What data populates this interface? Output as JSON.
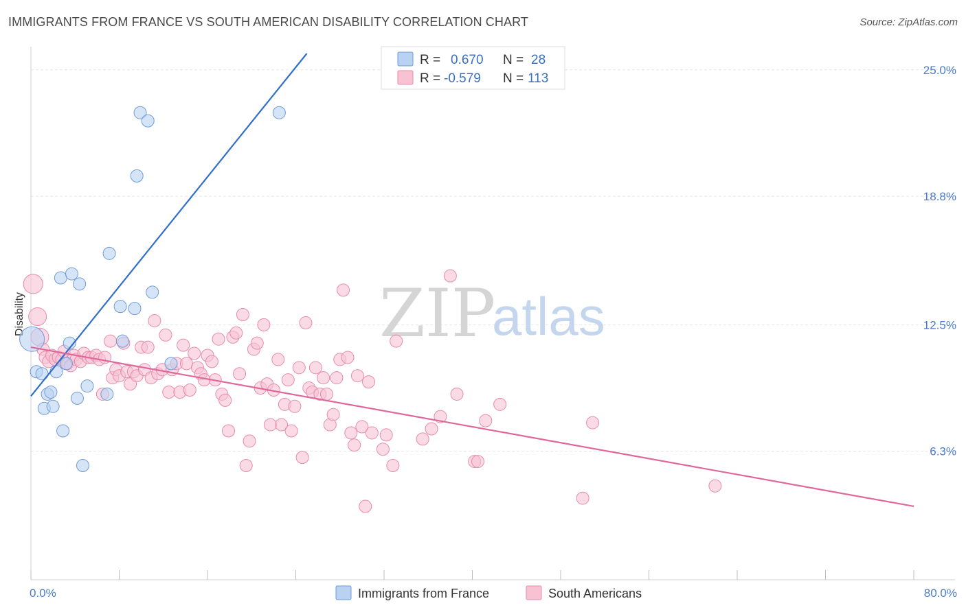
{
  "title": "IMMIGRANTS FROM FRANCE VS SOUTH AMERICAN DISABILITY CORRELATION CHART",
  "source": "Source: ZipAtlas.com",
  "watermark": {
    "zip": "ZIP",
    "atlas": "atlas"
  },
  "colors": {
    "france_fill": "#b9d2f2",
    "france_stroke": "#6e9bd8",
    "france_line": "#2f6ecb",
    "sa_fill": "#f7c3d3",
    "sa_stroke": "#e98aab",
    "sa_line": "#e0679a",
    "grid": "#e5e5e5",
    "tick_label": "#4a7ccc"
  },
  "legend": {
    "france": {
      "r_label": "R =",
      "r_value": "0.670",
      "n_label": "N =",
      "n_value": "28"
    },
    "sa": {
      "r_label": "R =",
      "r_value": "-0.579",
      "n_label": "N =",
      "n_value": "113"
    }
  },
  "bottom_legend": {
    "france": "Immigrants from France",
    "sa": "South Americans"
  },
  "chart_data": {
    "type": "scatter",
    "xlabel": "",
    "ylabel": "Disability",
    "xlim": [
      0,
      80
    ],
    "ylim": [
      0,
      25.8
    ],
    "x_tick_labels": [
      "0.0%",
      "80.0%"
    ],
    "y_ticks": [
      6.3,
      12.5,
      18.8,
      25.0
    ],
    "y_tick_labels": [
      "6.3%",
      "12.5%",
      "18.8%",
      "25.0%"
    ],
    "grid": true,
    "legend_position": "top-center",
    "series": [
      {
        "name": "Immigrants from France",
        "trend": {
          "x": [
            0,
            25.0
          ],
          "y": [
            9.0,
            25.8
          ]
        },
        "points": [
          {
            "x": 0.1,
            "y": 11.8,
            "r": 18
          },
          {
            "x": 0.5,
            "y": 10.2
          },
          {
            "x": 1.0,
            "y": 10.1
          },
          {
            "x": 1.2,
            "y": 8.4
          },
          {
            "x": 1.5,
            "y": 9.1
          },
          {
            "x": 1.8,
            "y": 9.2
          },
          {
            "x": 2.0,
            "y": 8.5
          },
          {
            "x": 2.3,
            "y": 10.2
          },
          {
            "x": 2.7,
            "y": 14.8
          },
          {
            "x": 2.9,
            "y": 7.3
          },
          {
            "x": 3.2,
            "y": 10.6
          },
          {
            "x": 3.5,
            "y": 11.6
          },
          {
            "x": 3.7,
            "y": 15.0
          },
          {
            "x": 4.2,
            "y": 8.9
          },
          {
            "x": 4.4,
            "y": 14.5
          },
          {
            "x": 4.7,
            "y": 5.6
          },
          {
            "x": 5.1,
            "y": 9.5
          },
          {
            "x": 6.9,
            "y": 9.1
          },
          {
            "x": 7.1,
            "y": 16.0
          },
          {
            "x": 8.1,
            "y": 13.4
          },
          {
            "x": 8.3,
            "y": 11.7
          },
          {
            "x": 9.4,
            "y": 13.3
          },
          {
            "x": 9.6,
            "y": 19.8
          },
          {
            "x": 9.9,
            "y": 22.9
          },
          {
            "x": 10.6,
            "y": 22.5
          },
          {
            "x": 11.0,
            "y": 14.1
          },
          {
            "x": 12.7,
            "y": 10.6
          },
          {
            "x": 22.5,
            "y": 22.9
          }
        ]
      },
      {
        "name": "South Americans",
        "trend": {
          "x": [
            0,
            80
          ],
          "y": [
            11.4,
            3.6
          ]
        },
        "points": [
          {
            "x": 0.2,
            "y": 14.5,
            "r": 14
          },
          {
            "x": 0.6,
            "y": 12.9,
            "r": 13
          },
          {
            "x": 0.8,
            "y": 11.9,
            "r": 13
          },
          {
            "x": 1.1,
            "y": 11.3
          },
          {
            "x": 1.3,
            "y": 10.9
          },
          {
            "x": 1.6,
            "y": 10.7
          },
          {
            "x": 1.9,
            "y": 11.0
          },
          {
            "x": 2.2,
            "y": 10.8
          },
          {
            "x": 2.5,
            "y": 10.9
          },
          {
            "x": 2.8,
            "y": 10.8
          },
          {
            "x": 3.0,
            "y": 11.2
          },
          {
            "x": 3.3,
            "y": 10.6
          },
          {
            "x": 3.6,
            "y": 10.5
          },
          {
            "x": 3.9,
            "y": 11.0
          },
          {
            "x": 4.1,
            "y": 10.8
          },
          {
            "x": 4.5,
            "y": 10.7
          },
          {
            "x": 4.8,
            "y": 11.1
          },
          {
            "x": 5.2,
            "y": 10.9
          },
          {
            "x": 5.5,
            "y": 10.9
          },
          {
            "x": 5.9,
            "y": 11.0
          },
          {
            "x": 6.2,
            "y": 10.8
          },
          {
            "x": 6.5,
            "y": 9.1
          },
          {
            "x": 6.7,
            "y": 10.9
          },
          {
            "x": 7.2,
            "y": 11.7
          },
          {
            "x": 7.4,
            "y": 9.9
          },
          {
            "x": 7.7,
            "y": 10.3
          },
          {
            "x": 8.0,
            "y": 10.0
          },
          {
            "x": 8.4,
            "y": 11.6
          },
          {
            "x": 8.7,
            "y": 10.2
          },
          {
            "x": 9.0,
            "y": 9.6
          },
          {
            "x": 9.3,
            "y": 10.2
          },
          {
            "x": 9.6,
            "y": 10.0
          },
          {
            "x": 10.0,
            "y": 11.4
          },
          {
            "x": 10.3,
            "y": 10.3
          },
          {
            "x": 10.6,
            "y": 11.4
          },
          {
            "x": 10.9,
            "y": 9.9
          },
          {
            "x": 11.2,
            "y": 12.7
          },
          {
            "x": 11.5,
            "y": 10.1
          },
          {
            "x": 11.9,
            "y": 10.3
          },
          {
            "x": 12.2,
            "y": 12.0
          },
          {
            "x": 12.5,
            "y": 9.2
          },
          {
            "x": 12.8,
            "y": 10.3
          },
          {
            "x": 13.2,
            "y": 10.6
          },
          {
            "x": 13.5,
            "y": 9.2
          },
          {
            "x": 13.8,
            "y": 11.5
          },
          {
            "x": 14.1,
            "y": 10.6
          },
          {
            "x": 14.4,
            "y": 9.3
          },
          {
            "x": 14.8,
            "y": 11.1
          },
          {
            "x": 15.1,
            "y": 10.4
          },
          {
            "x": 15.4,
            "y": 10.1
          },
          {
            "x": 15.7,
            "y": 9.8
          },
          {
            "x": 16.0,
            "y": 11.0
          },
          {
            "x": 16.4,
            "y": 10.7
          },
          {
            "x": 16.7,
            "y": 9.8
          },
          {
            "x": 17.0,
            "y": 11.8
          },
          {
            "x": 17.3,
            "y": 9.1
          },
          {
            "x": 17.6,
            "y": 8.8
          },
          {
            "x": 17.9,
            "y": 7.3
          },
          {
            "x": 18.3,
            "y": 11.9
          },
          {
            "x": 18.6,
            "y": 12.1
          },
          {
            "x": 18.9,
            "y": 10.1
          },
          {
            "x": 19.2,
            "y": 13.0
          },
          {
            "x": 19.5,
            "y": 5.6
          },
          {
            "x": 19.8,
            "y": 6.8
          },
          {
            "x": 20.2,
            "y": 11.3
          },
          {
            "x": 20.5,
            "y": 11.6
          },
          {
            "x": 20.8,
            "y": 9.4
          },
          {
            "x": 21.1,
            "y": 12.5
          },
          {
            "x": 21.4,
            "y": 9.6
          },
          {
            "x": 21.7,
            "y": 7.6
          },
          {
            "x": 22.0,
            "y": 9.3
          },
          {
            "x": 22.4,
            "y": 10.8
          },
          {
            "x": 22.7,
            "y": 7.6
          },
          {
            "x": 23.0,
            "y": 8.6
          },
          {
            "x": 23.3,
            "y": 9.8
          },
          {
            "x": 23.6,
            "y": 7.3
          },
          {
            "x": 23.9,
            "y": 8.5
          },
          {
            "x": 24.3,
            "y": 10.4
          },
          {
            "x": 24.6,
            "y": 6.0
          },
          {
            "x": 24.9,
            "y": 12.6
          },
          {
            "x": 25.2,
            "y": 9.4
          },
          {
            "x": 25.5,
            "y": 9.2
          },
          {
            "x": 25.8,
            "y": 10.4
          },
          {
            "x": 26.2,
            "y": 9.1
          },
          {
            "x": 26.5,
            "y": 9.9
          },
          {
            "x": 26.8,
            "y": 9.1
          },
          {
            "x": 27.1,
            "y": 7.6
          },
          {
            "x": 27.4,
            "y": 8.1
          },
          {
            "x": 27.7,
            "y": 9.9
          },
          {
            "x": 28.0,
            "y": 10.8
          },
          {
            "x": 28.3,
            "y": 14.2
          },
          {
            "x": 28.7,
            "y": 10.9
          },
          {
            "x": 29.0,
            "y": 7.2
          },
          {
            "x": 29.3,
            "y": 6.6
          },
          {
            "x": 29.6,
            "y": 10.0
          },
          {
            "x": 30.0,
            "y": 7.5
          },
          {
            "x": 30.3,
            "y": 3.6
          },
          {
            "x": 30.6,
            "y": 9.7
          },
          {
            "x": 30.9,
            "y": 7.2
          },
          {
            "x": 31.9,
            "y": 6.4
          },
          {
            "x": 32.2,
            "y": 7.1
          },
          {
            "x": 32.8,
            "y": 5.6
          },
          {
            "x": 33.1,
            "y": 11.7
          },
          {
            "x": 35.5,
            "y": 6.9
          },
          {
            "x": 36.3,
            "y": 7.4
          },
          {
            "x": 37.1,
            "y": 8.0
          },
          {
            "x": 38.0,
            "y": 14.9
          },
          {
            "x": 38.6,
            "y": 9.1
          },
          {
            "x": 40.2,
            "y": 5.8
          },
          {
            "x": 40.5,
            "y": 5.8
          },
          {
            "x": 41.2,
            "y": 7.8
          },
          {
            "x": 42.5,
            "y": 8.6
          },
          {
            "x": 50.9,
            "y": 7.7
          },
          {
            "x": 50.0,
            "y": 4.0
          },
          {
            "x": 62.0,
            "y": 4.6
          }
        ]
      }
    ]
  }
}
